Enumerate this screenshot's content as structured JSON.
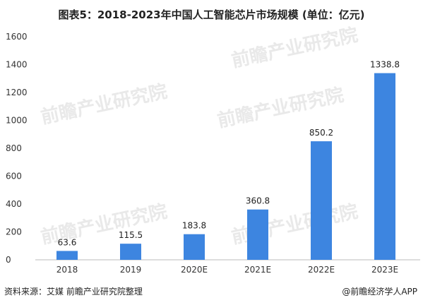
{
  "chart_data": {
    "type": "bar",
    "title": "图表5：2018-2023年中国人工智能芯片市场规模 (单位：亿元)",
    "categories": [
      "2018",
      "2019",
      "2020E",
      "2021E",
      "2022E",
      "2023E"
    ],
    "values": [
      63.6,
      115.5,
      183.8,
      360.8,
      850.2,
      1338.8
    ],
    "value_labels": [
      "63.6",
      "115.5",
      "183.8",
      "360.8",
      "850.2",
      "1338.8"
    ],
    "ylim": [
      0,
      1600
    ],
    "yticks": [
      "0",
      "200",
      "400",
      "600",
      "800",
      "1000",
      "1200",
      "1400",
      "1600"
    ],
    "bar_color": "#3d85e0",
    "grid": false,
    "legend": "none",
    "xlabel": "",
    "ylabel": ""
  },
  "source": "资料来源：艾媒 前瞻产业研究院整理",
  "brand": "@前瞻经济学人APP",
  "watermark": "前瞻产业研究院"
}
